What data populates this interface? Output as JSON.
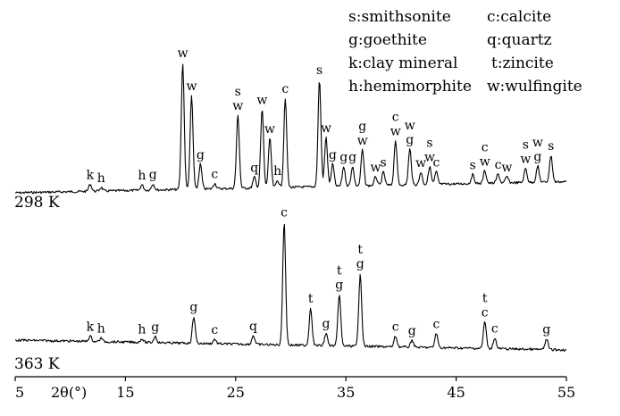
{
  "chart_data": {
    "type": "line",
    "xlabel": "2θ(°)",
    "xlim": [
      5,
      55
    ],
    "ticks": [
      {
        "value": 5,
        "label": "5"
      },
      {
        "value": 15,
        "label": "15"
      },
      {
        "value": 25,
        "label": "25"
      },
      {
        "value": 35,
        "label": "35"
      },
      {
        "value": 45,
        "label": "45"
      },
      {
        "value": 55,
        "label": "55"
      }
    ],
    "legend_position": "top-right",
    "legend": [
      {
        "key": "s",
        "text": "s:smithsonite"
      },
      {
        "key": "c",
        "text": "c:calcite"
      },
      {
        "key": "g",
        "text": "g:goethite"
      },
      {
        "key": "q",
        "text": "q:quartz"
      },
      {
        "key": "k",
        "text": "k:clay mineral"
      },
      {
        "key": "t",
        "text": "t:zincite"
      },
      {
        "key": "h",
        "text": "h:hemimorphite"
      },
      {
        "key": "w",
        "text": "w:wulfingite"
      }
    ],
    "series": [
      {
        "name": "298 K",
        "peaks": [
          {
            "x": 11.8,
            "h": 8,
            "labels": [
              "k"
            ]
          },
          {
            "x": 12.8,
            "h": 4,
            "labels": [
              "h"
            ]
          },
          {
            "x": 16.5,
            "h": 6,
            "labels": [
              "h"
            ]
          },
          {
            "x": 17.5,
            "h": 7,
            "labels": [
              "g"
            ]
          },
          {
            "x": 20.2,
            "h": 142,
            "labels": [
              "w"
            ]
          },
          {
            "x": 21.0,
            "h": 105,
            "labels": [
              "w"
            ]
          },
          {
            "x": 21.8,
            "h": 28,
            "labels": [
              "g"
            ]
          },
          {
            "x": 23.1,
            "h": 6,
            "labels": [
              "c"
            ]
          },
          {
            "x": 25.2,
            "h": 82,
            "labels": [
              "w",
              "s"
            ]
          },
          {
            "x": 26.7,
            "h": 12,
            "labels": [
              "q"
            ]
          },
          {
            "x": 27.4,
            "h": 88,
            "labels": [
              "w"
            ]
          },
          {
            "x": 28.1,
            "h": 55,
            "labels": [
              "w"
            ]
          },
          {
            "x": 28.8,
            "h": 8,
            "labels": [
              "h"
            ]
          },
          {
            "x": 29.5,
            "h": 100,
            "labels": [
              "c"
            ]
          },
          {
            "x": 32.6,
            "h": 120,
            "labels": [
              "s"
            ]
          },
          {
            "x": 33.2,
            "h": 55,
            "labels": [
              "w"
            ]
          },
          {
            "x": 33.8,
            "h": 25,
            "labels": [
              "g"
            ]
          },
          {
            "x": 34.8,
            "h": 22,
            "labels": [
              "g"
            ]
          },
          {
            "x": 35.6,
            "h": 22,
            "labels": [
              "g"
            ]
          },
          {
            "x": 36.5,
            "h": 40,
            "labels": [
              "w",
              "g"
            ]
          },
          {
            "x": 37.7,
            "h": 10,
            "labels": [
              "w"
            ]
          },
          {
            "x": 38.4,
            "h": 15,
            "labels": [
              "s"
            ]
          },
          {
            "x": 39.5,
            "h": 50,
            "labels": [
              "w",
              "c"
            ]
          },
          {
            "x": 40.8,
            "h": 40,
            "labels": [
              "g",
              "w"
            ]
          },
          {
            "x": 41.8,
            "h": 14,
            "labels": [
              "w"
            ]
          },
          {
            "x": 42.6,
            "h": 20,
            "labels": [
              "w",
              "s"
            ]
          },
          {
            "x": 43.2,
            "h": 14,
            "labels": [
              "c"
            ]
          },
          {
            "x": 46.5,
            "h": 10,
            "labels": [
              "s"
            ]
          },
          {
            "x": 47.6,
            "h": 14,
            "labels": [
              "w",
              "c"
            ]
          },
          {
            "x": 48.8,
            "h": 10,
            "labels": [
              "c"
            ]
          },
          {
            "x": 49.6,
            "h": 7,
            "labels": [
              "w"
            ]
          },
          {
            "x": 51.3,
            "h": 16,
            "labels": [
              "w",
              "s"
            ]
          },
          {
            "x": 52.4,
            "h": 18,
            "labels": [
              "g",
              "w"
            ]
          },
          {
            "x": 53.6,
            "h": 30,
            "labels": [
              "s"
            ]
          }
        ]
      },
      {
        "name": "363 K",
        "peaks": [
          {
            "x": 11.8,
            "h": 6,
            "labels": [
              "k"
            ]
          },
          {
            "x": 12.8,
            "h": 4,
            "labels": [
              "h"
            ]
          },
          {
            "x": 16.5,
            "h": 4,
            "labels": [
              "h"
            ]
          },
          {
            "x": 17.7,
            "h": 7,
            "labels": [
              "g"
            ]
          },
          {
            "x": 21.2,
            "h": 30,
            "labels": [
              "g"
            ]
          },
          {
            "x": 23.1,
            "h": 5,
            "labels": [
              "c"
            ]
          },
          {
            "x": 26.6,
            "h": 10,
            "labels": [
              "q"
            ]
          },
          {
            "x": 29.4,
            "h": 138,
            "labels": [
              "c"
            ]
          },
          {
            "x": 31.8,
            "h": 42,
            "labels": [
              "t"
            ]
          },
          {
            "x": 33.2,
            "h": 14,
            "labels": [
              "g"
            ]
          },
          {
            "x": 34.4,
            "h": 58,
            "labels": [
              "g",
              "t"
            ]
          },
          {
            "x": 36.3,
            "h": 82,
            "labels": [
              "g",
              "t"
            ]
          },
          {
            "x": 39.5,
            "h": 12,
            "labels": [
              "c"
            ]
          },
          {
            "x": 41.0,
            "h": 8,
            "labels": [
              "g"
            ]
          },
          {
            "x": 43.2,
            "h": 16,
            "labels": [
              "c"
            ]
          },
          {
            "x": 47.6,
            "h": 30,
            "labels": [
              "c",
              "t"
            ]
          },
          {
            "x": 48.5,
            "h": 12,
            "labels": [
              "c"
            ]
          },
          {
            "x": 53.2,
            "h": 12,
            "labels": [
              "g"
            ]
          }
        ]
      }
    ]
  }
}
